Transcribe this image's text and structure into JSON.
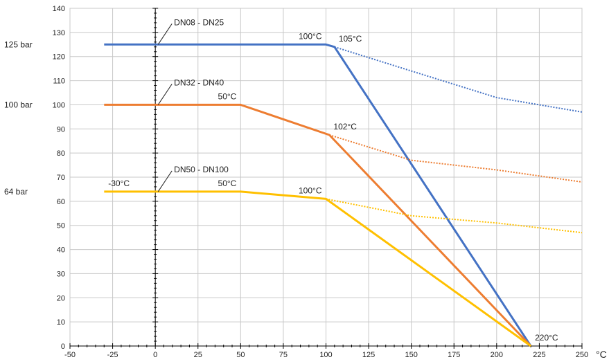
{
  "chart_data": {
    "type": "line",
    "x_unit": "°C",
    "xlim": [
      -50,
      250
    ],
    "ylim": [
      0,
      140
    ],
    "xticks": [
      -50,
      -25,
      0,
      25,
      50,
      75,
      100,
      125,
      150,
      175,
      200,
      225,
      250
    ],
    "yticks": [
      0,
      10,
      20,
      30,
      40,
      50,
      60,
      70,
      80,
      90,
      100,
      110,
      120,
      130,
      140
    ],
    "grid": true,
    "colors": {
      "blue": "#4472c4",
      "orange": "#ed7d31",
      "yellow": "#ffc000",
      "grid": "#c8c8c8",
      "axis": "#000000"
    },
    "series": [
      {
        "name": "DN08 - DN25",
        "color": "#4472c4",
        "solid": [
          [
            -30,
            125
          ],
          [
            100,
            125
          ],
          [
            105,
            124
          ],
          [
            220,
            0
          ]
        ],
        "dotted": [
          [
            105,
            124
          ],
          [
            150,
            114
          ],
          [
            200,
            103
          ],
          [
            250,
            97
          ]
        ]
      },
      {
        "name": "DN32 - DN40",
        "color": "#ed7d31",
        "solid": [
          [
            -30,
            100
          ],
          [
            50,
            100
          ],
          [
            102,
            87.5
          ],
          [
            220,
            0
          ]
        ],
        "dotted": [
          [
            102,
            87.5
          ],
          [
            150,
            77
          ],
          [
            200,
            73
          ],
          [
            250,
            68
          ]
        ]
      },
      {
        "name": "DN50 - DN100",
        "color": "#ffc000",
        "solid": [
          [
            -30,
            64
          ],
          [
            50,
            64
          ],
          [
            100,
            61
          ],
          [
            220,
            0
          ]
        ],
        "dotted": [
          [
            100,
            61
          ],
          [
            150,
            54
          ],
          [
            200,
            51
          ],
          [
            250,
            47
          ]
        ]
      }
    ],
    "annotations": [
      {
        "text": "100°C",
        "x": 100,
        "y": 125,
        "anchor": "end"
      },
      {
        "text": "105°C",
        "x": 105,
        "y": 124,
        "anchor": "start"
      },
      {
        "text": "50°C",
        "x": 50,
        "y": 100,
        "anchor": "end"
      },
      {
        "text": "102°C",
        "x": 102,
        "y": 87.5,
        "anchor": "start"
      },
      {
        "text": "-30°C",
        "x": -30,
        "y": 64,
        "anchor": "start"
      },
      {
        "text": "50°C",
        "x": 50,
        "y": 64,
        "anchor": "end"
      },
      {
        "text": "100°C",
        "x": 100,
        "y": 61,
        "anchor": "end"
      },
      {
        "text": "220°C",
        "x": 220,
        "y": 0,
        "anchor": "start"
      }
    ],
    "pressure_labels": [
      {
        "text": "125 bar",
        "y": 125
      },
      {
        "text": "100 bar",
        "y": 100
      },
      {
        "text": "64 bar",
        "y": 64
      }
    ]
  }
}
